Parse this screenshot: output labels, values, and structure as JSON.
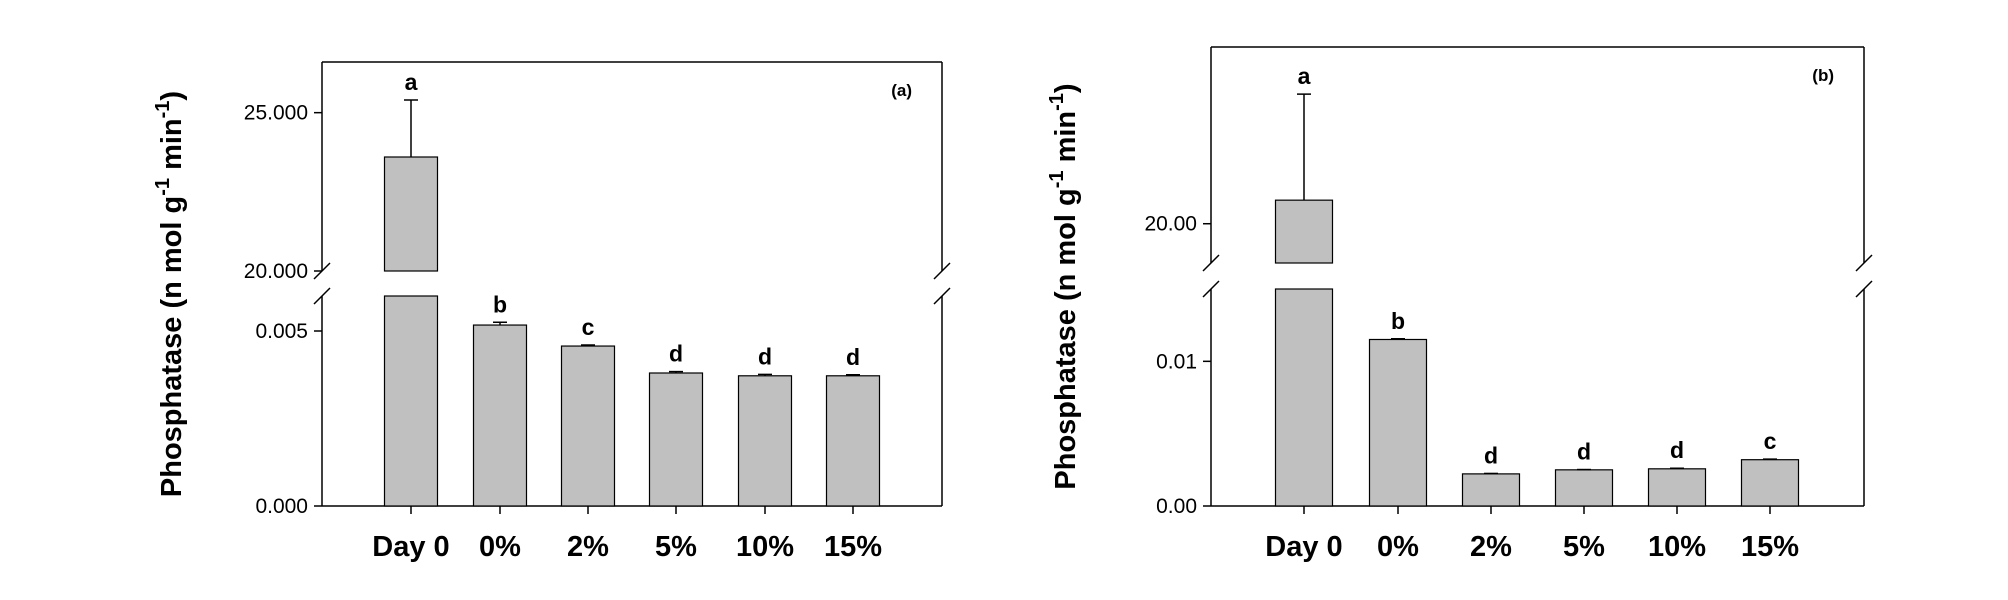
{
  "chart_data": [
    {
      "type": "bar",
      "panel_label": "(a)",
      "ylabel": "Phosphatase (n mol g-1 min-1)",
      "ylabel_parts": {
        "main": "Phosphatase (n mol g",
        "sup1": "-1",
        "mid": " min",
        "sup2": "-1",
        "end": ")"
      },
      "categories": [
        "Day 0",
        "0%",
        "2%",
        "5%",
        "10%",
        "15%"
      ],
      "values": [
        23.6,
        0.00517,
        0.00457,
        0.0038,
        0.00372,
        0.00372
      ],
      "errors": [
        1.8,
        8e-05,
        3e-05,
        4e-05,
        4e-05,
        3e-05
      ],
      "significance": [
        "a",
        "b",
        "c",
        "d",
        "d",
        "d"
      ],
      "y_axis_break": true,
      "ylim_lower": [
        0,
        0.006
      ],
      "ylim_upper": [
        20,
        26.6
      ],
      "yticks_lower": [
        {
          "value": 0,
          "label": "0.000"
        },
        {
          "value": 0.005,
          "label": "0.005"
        }
      ],
      "yticks_upper": [
        {
          "value": 20,
          "label": "20.000"
        },
        {
          "value": 25,
          "label": "25.000"
        }
      ],
      "bar_color": "#c0c0c0",
      "grid": false
    },
    {
      "type": "bar",
      "panel_label": "(b)",
      "ylabel": "Phosphatase (n mol g-1 min-1)",
      "ylabel_parts": {
        "main": "Phosphatase (n mol g",
        "sup1": "-1",
        "mid": " min",
        "sup2": "-1",
        "end": ")"
      },
      "categories": [
        "Day 0",
        "0%",
        "2%",
        "5%",
        "10%",
        "15%"
      ],
      "values": [
        20.6,
        0.01151,
        0.00222,
        0.0025,
        0.00257,
        0.0032
      ],
      "errors": [
        2.7,
        5e-05,
        3e-05,
        2e-05,
        4e-05,
        4e-05
      ],
      "significance": [
        "a",
        "b",
        "d",
        "d",
        "d",
        "c"
      ],
      "y_axis_break": true,
      "ylim_lower": [
        0,
        0.015
      ],
      "ylim_upper": [
        19,
        24.5
      ],
      "yticks_lower": [
        {
          "value": 0,
          "label": "0.00"
        },
        {
          "value": 0.01,
          "label": "0.01"
        }
      ],
      "yticks_upper": [
        {
          "value": 20,
          "label": "20.00"
        }
      ],
      "bar_color": "#c0c0c0",
      "grid": false
    }
  ]
}
